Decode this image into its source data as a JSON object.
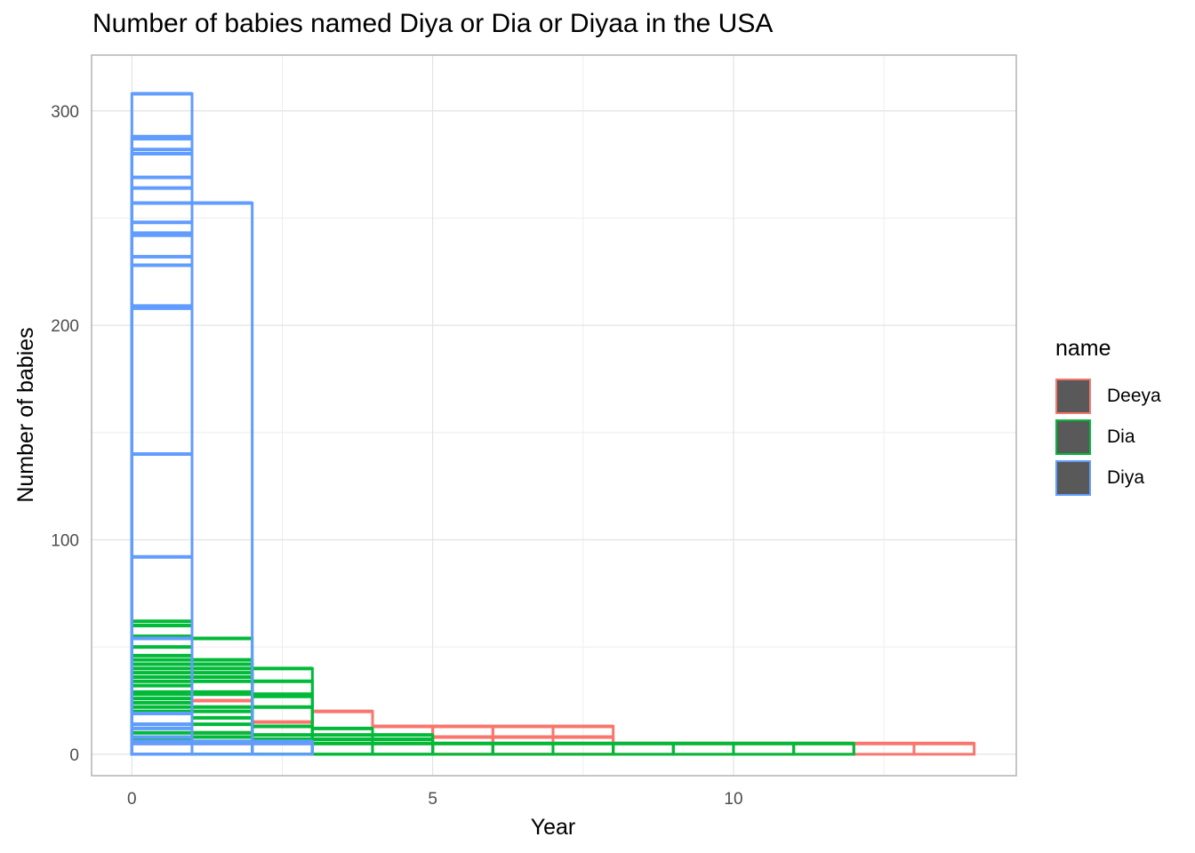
{
  "chart_data": {
    "type": "bar",
    "title": "Number of babies named Diya or Dia or Diyaa in the USA",
    "xlabel": "Year",
    "ylabel": "Number of babies",
    "xlim": [
      -0.67,
      14.7
    ],
    "ylim": [
      -10,
      326
    ],
    "x_ticks": [
      0,
      5,
      10
    ],
    "y_ticks": [
      0,
      100,
      200,
      300
    ],
    "grid": true,
    "legend": {
      "title": "name",
      "position": "right"
    },
    "series": [
      {
        "name": "Deeya",
        "color": "#F8766D",
        "bars": [
          [
            0,
            1,
            5
          ],
          [
            1,
            2,
            5
          ],
          [
            2,
            3,
            5
          ],
          [
            3,
            4,
            5
          ],
          [
            4,
            5,
            5
          ],
          [
            5,
            6,
            5
          ],
          [
            6,
            7,
            5
          ],
          [
            7,
            8,
            5
          ],
          [
            8,
            9,
            5
          ],
          [
            9,
            10,
            5
          ],
          [
            10,
            11,
            5
          ],
          [
            11,
            12,
            5
          ],
          [
            12,
            13,
            5
          ],
          [
            13,
            14,
            5
          ],
          [
            4,
            5,
            13
          ],
          [
            5,
            6,
            13
          ],
          [
            6,
            7,
            13
          ],
          [
            7,
            8,
            13
          ],
          [
            5,
            6,
            8
          ],
          [
            6,
            7,
            8
          ],
          [
            7,
            8,
            8
          ],
          [
            3,
            4,
            20
          ],
          [
            2,
            3,
            15
          ],
          [
            1,
            2,
            10
          ],
          [
            1,
            2,
            25
          ]
        ]
      },
      {
        "name": "Dia",
        "color": "#00BA38",
        "bars": [
          [
            0,
            1,
            62
          ],
          [
            0,
            1,
            60
          ],
          [
            0,
            1,
            55
          ],
          [
            1,
            2,
            54
          ],
          [
            0,
            1,
            50
          ],
          [
            0,
            1,
            46
          ],
          [
            0,
            1,
            44
          ],
          [
            1,
            2,
            44
          ],
          [
            0,
            1,
            42
          ],
          [
            1,
            2,
            42
          ],
          [
            0,
            1,
            40
          ],
          [
            1,
            2,
            40
          ],
          [
            2,
            3,
            40
          ],
          [
            0,
            1,
            38
          ],
          [
            1,
            2,
            38
          ],
          [
            0,
            1,
            36
          ],
          [
            1,
            2,
            36
          ],
          [
            0,
            1,
            34
          ],
          [
            1,
            2,
            34
          ],
          [
            2,
            3,
            34
          ],
          [
            0,
            1,
            32
          ],
          [
            0,
            1,
            29
          ],
          [
            1,
            2,
            29
          ],
          [
            0,
            1,
            28
          ],
          [
            1,
            2,
            28
          ],
          [
            2,
            3,
            28
          ],
          [
            2,
            3,
            27
          ],
          [
            0,
            1,
            26
          ],
          [
            0,
            1,
            24
          ],
          [
            0,
            1,
            22
          ],
          [
            1,
            2,
            22
          ],
          [
            2,
            3,
            22
          ],
          [
            0,
            1,
            20
          ],
          [
            1,
            2,
            20
          ],
          [
            1,
            2,
            17
          ],
          [
            0,
            1,
            14
          ],
          [
            1,
            2,
            14
          ],
          [
            2,
            3,
            13
          ],
          [
            3,
            4,
            12
          ],
          [
            0,
            1,
            10
          ],
          [
            1,
            2,
            10
          ],
          [
            2,
            3,
            9
          ],
          [
            3,
            4,
            9
          ],
          [
            4,
            5,
            9
          ],
          [
            1,
            2,
            8
          ],
          [
            0,
            1,
            7
          ],
          [
            2,
            3,
            7
          ],
          [
            3,
            4,
            7
          ],
          [
            4,
            5,
            7
          ],
          [
            3,
            4,
            5
          ],
          [
            4,
            5,
            5
          ],
          [
            5,
            6,
            5
          ],
          [
            6,
            7,
            5
          ],
          [
            7,
            8,
            5
          ],
          [
            8,
            9,
            5
          ],
          [
            9,
            10,
            5
          ],
          [
            10,
            11,
            5
          ],
          [
            11,
            12,
            5
          ]
        ]
      },
      {
        "name": "Diya",
        "color": "#619CFF",
        "bars": [
          [
            0,
            1,
            308
          ],
          [
            0,
            1,
            288
          ],
          [
            0,
            1,
            287
          ],
          [
            0,
            1,
            282
          ],
          [
            0,
            1,
            280
          ],
          [
            0,
            1,
            269
          ],
          [
            0,
            1,
            264
          ],
          [
            0,
            1,
            257
          ],
          [
            1,
            2,
            257
          ],
          [
            0,
            1,
            248
          ],
          [
            0,
            1,
            243
          ],
          [
            0,
            1,
            242
          ],
          [
            0,
            1,
            232
          ],
          [
            0,
            1,
            228
          ],
          [
            0,
            1,
            209
          ],
          [
            0,
            1,
            208
          ],
          [
            0,
            1,
            140
          ],
          [
            0,
            1,
            92
          ],
          [
            0,
            1,
            54
          ],
          [
            0,
            1,
            19
          ],
          [
            0,
            1,
            14
          ],
          [
            0,
            1,
            12
          ],
          [
            0,
            1,
            8
          ],
          [
            0,
            1,
            6
          ],
          [
            1,
            2,
            6
          ],
          [
            2,
            3,
            6
          ],
          [
            0,
            1,
            5
          ],
          [
            1,
            2,
            5
          ],
          [
            2,
            3,
            5
          ]
        ]
      }
    ]
  }
}
